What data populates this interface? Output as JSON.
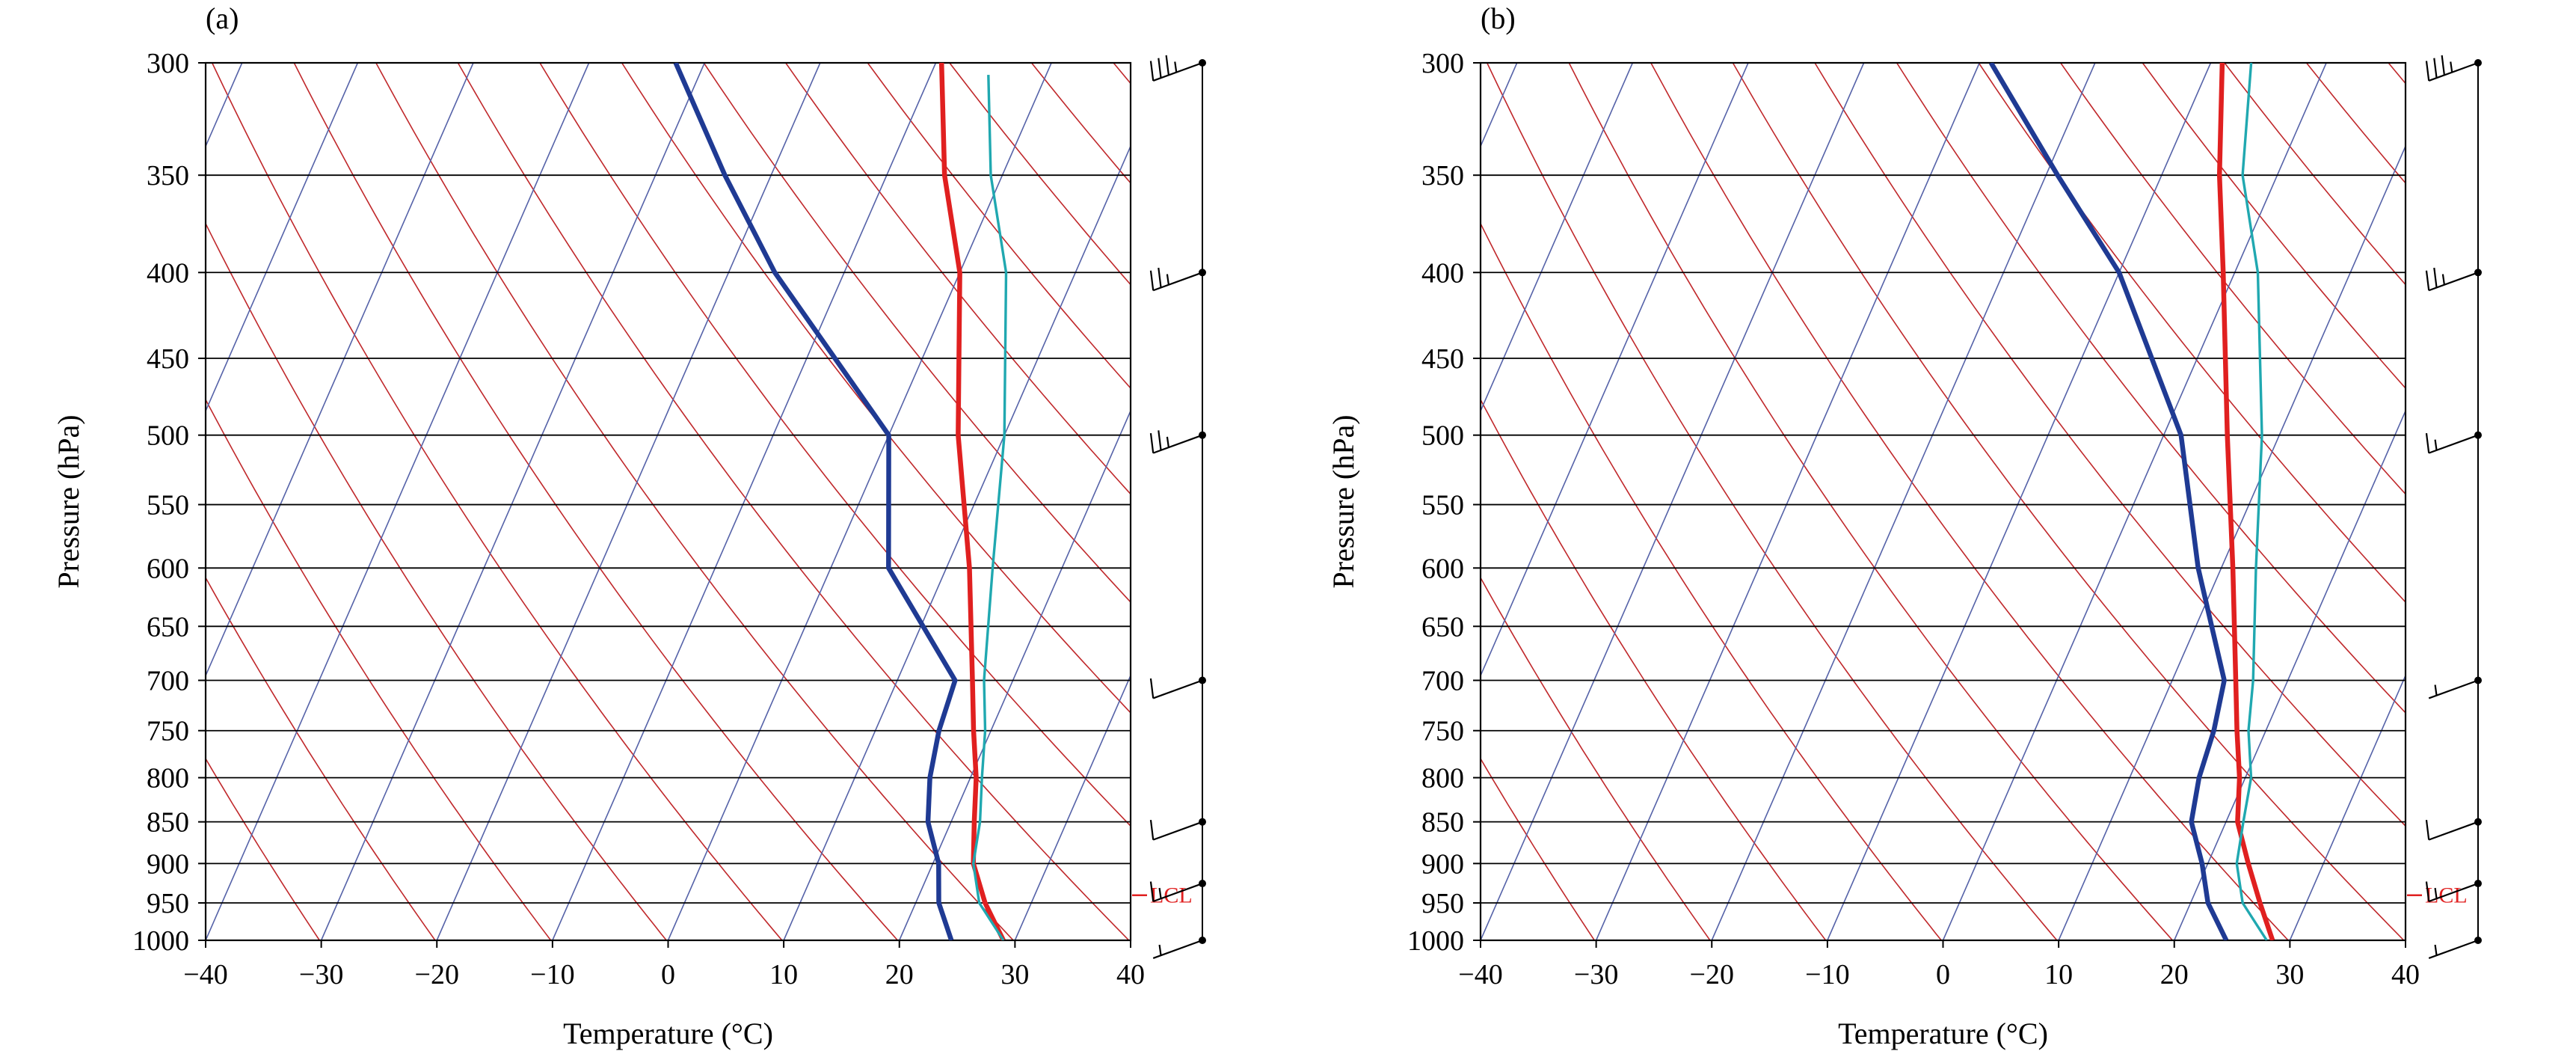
{
  "chart_data": [
    {
      "type": "line",
      "panel_label": "(a)",
      "xlabel": "Temperature (°C)",
      "ylabel": "Pressure (hPa)",
      "xlim": [
        -40,
        40
      ],
      "ylim": [
        1000,
        300
      ],
      "x_ticks": [
        -40,
        -30,
        -20,
        -10,
        0,
        10,
        20,
        30,
        40
      ],
      "y_ticks": [
        300,
        350,
        400,
        450,
        500,
        550,
        600,
        650,
        700,
        750,
        800,
        850,
        900,
        950,
        1000
      ],
      "lcl_label": "LCL",
      "lcl_pressure": 940,
      "series": [
        {
          "role": "dewpoint",
          "color": "#1f3a93",
          "points": [
            [
              24.5,
              1000
            ],
            [
              22,
              950
            ],
            [
              20.5,
              900
            ],
            [
              18,
              850
            ],
            [
              16.5,
              800
            ],
            [
              15.5,
              750
            ],
            [
              15,
              700
            ],
            [
              5,
              600
            ],
            [
              0,
              500
            ],
            [
              -16,
              400
            ],
            [
              -24,
              350
            ],
            [
              -32.5,
              300
            ]
          ]
        },
        {
          "role": "temperature",
          "color": "#e02020",
          "points": [
            [
              29,
              1000
            ],
            [
              26,
              950
            ],
            [
              23.5,
              900
            ],
            [
              22,
              850
            ],
            [
              20.5,
              800
            ],
            [
              18.5,
              750
            ],
            [
              16.5,
              700
            ],
            [
              12,
              600
            ],
            [
              6,
              500
            ],
            [
              0,
              400
            ],
            [
              -5,
              350
            ],
            [
              -9.5,
              300
            ]
          ]
        },
        {
          "role": "parcel",
          "color": "#20a8b0",
          "points": [
            [
              29,
              1000
            ],
            [
              25.5,
              950
            ],
            [
              23.5,
              900
            ],
            [
              22.5,
              850
            ],
            [
              21,
              800
            ],
            [
              19.5,
              750
            ],
            [
              17.5,
              700
            ],
            [
              14,
              600
            ],
            [
              10,
              500
            ],
            [
              4,
              400
            ],
            [
              -1,
              350
            ],
            [
              -5,
              305
            ]
          ]
        }
      ],
      "wind_barbs": [
        {
          "pressure": 300,
          "speed": 35
        },
        {
          "pressure": 400,
          "speed": 25
        },
        {
          "pressure": 500,
          "speed": 25
        },
        {
          "pressure": 700,
          "speed": 10
        },
        {
          "pressure": 850,
          "speed": 10
        },
        {
          "pressure": 925,
          "speed": 15
        },
        {
          "pressure": 1000,
          "speed": 5
        }
      ]
    },
    {
      "type": "line",
      "panel_label": "(b)",
      "xlabel": "Temperature (°C)",
      "ylabel": "Pressure (hPa)",
      "xlim": [
        -40,
        40
      ],
      "ylim": [
        1000,
        300
      ],
      "x_ticks": [
        -40,
        -30,
        -20,
        -10,
        0,
        10,
        20,
        30,
        40
      ],
      "y_ticks": [
        300,
        350,
        400,
        450,
        500,
        550,
        600,
        650,
        700,
        750,
        800,
        850,
        900,
        950,
        1000
      ],
      "lcl_label": "LCL",
      "lcl_pressure": 940,
      "series": [
        {
          "role": "dewpoint",
          "color": "#1f3a93",
          "points": [
            [
              24.5,
              1000
            ],
            [
              21.5,
              950
            ],
            [
              19.5,
              900
            ],
            [
              17,
              850
            ],
            [
              16,
              800
            ],
            [
              15.5,
              750
            ],
            [
              14.5,
              700
            ],
            [
              8,
              600
            ],
            [
              1.5,
              500
            ],
            [
              -10,
              400
            ],
            [
              -19,
              350
            ],
            [
              -29,
              300
            ]
          ]
        },
        {
          "role": "temperature",
          "color": "#e02020",
          "points": [
            [
              28.5,
              1000
            ],
            [
              26,
              950
            ],
            [
              23.5,
              900
            ],
            [
              21,
              850
            ],
            [
              19.5,
              800
            ],
            [
              17.5,
              750
            ],
            [
              15.5,
              700
            ],
            [
              11,
              600
            ],
            [
              5.5,
              500
            ],
            [
              -1,
              400
            ],
            [
              -5,
              350
            ],
            [
              -9,
              300
            ]
          ]
        },
        {
          "role": "parcel",
          "color": "#20a8b0",
          "points": [
            [
              28,
              1000
            ],
            [
              24.5,
              950
            ],
            [
              22.5,
              900
            ],
            [
              21.5,
              850
            ],
            [
              20.5,
              800
            ],
            [
              18.5,
              750
            ],
            [
              17,
              700
            ],
            [
              13,
              600
            ],
            [
              8.5,
              500
            ],
            [
              2,
              400
            ],
            [
              -3,
              350
            ],
            [
              -6.5,
              300
            ]
          ]
        }
      ],
      "wind_barbs": [
        {
          "pressure": 300,
          "speed": 35
        },
        {
          "pressure": 400,
          "speed": 25
        },
        {
          "pressure": 500,
          "speed": 15
        },
        {
          "pressure": 700,
          "speed": 5
        },
        {
          "pressure": 850,
          "speed": 10
        },
        {
          "pressure": 925,
          "speed": 15
        },
        {
          "pressure": 1000,
          "speed": 5
        }
      ]
    }
  ]
}
